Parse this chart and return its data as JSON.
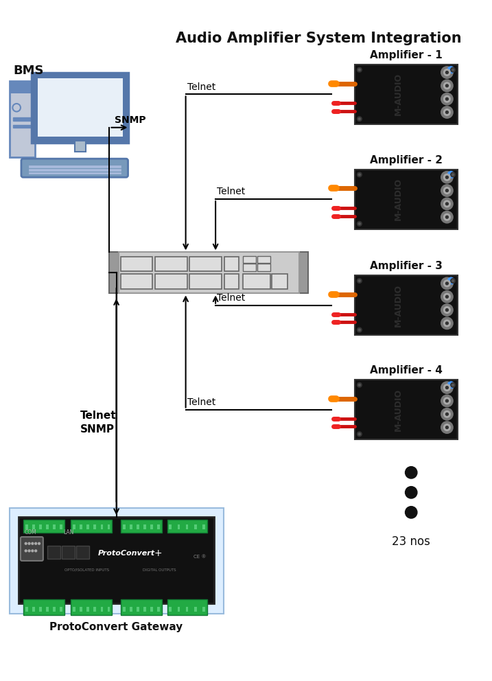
{
  "title": "Audio Amplifier System Integration",
  "title_fontsize": 15,
  "background_color": "#ffffff",
  "bms_label": "BMS",
  "snmp_label": "SNMP",
  "telnet_snmp_label": "Telnet\nSNMP",
  "gateway_label": "ProtoConvert Gateway",
  "amplifier_labels": [
    "Amplifier - 1",
    "Amplifier - 2",
    "Amplifier - 3",
    "Amplifier - 4"
  ],
  "telnet_label": "Telnet",
  "nos_label": "23 nos",
  "amp_color": "#111111",
  "switch_body": "#cccccc",
  "switch_dark": "#999999",
  "switch_darker": "#666666",
  "gateway_green": "#22aa44",
  "line_color": "#000000",
  "pc_tower_fill": "#c0c8d8",
  "pc_tower_edge": "#6688bb",
  "pc_monitor_edge": "#5577aa",
  "pc_screen_fill": "#e8f0f8",
  "pc_kbd_fill": "#7799bb",
  "pc_stand_fill": "#aabbcc"
}
